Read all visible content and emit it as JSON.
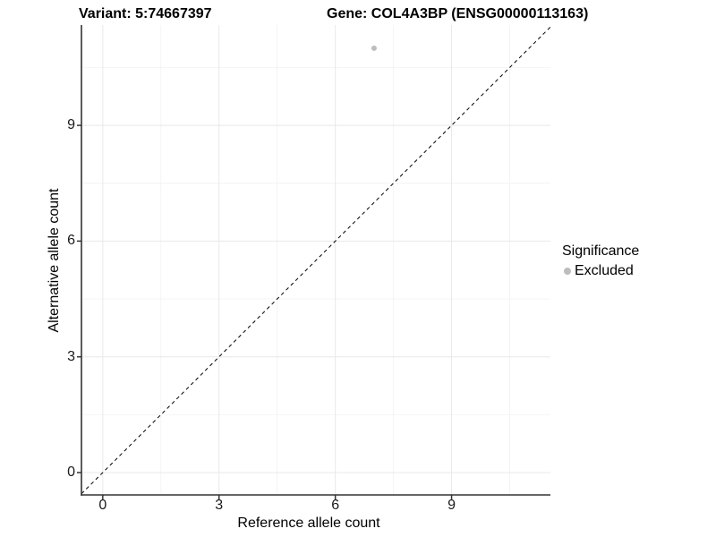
{
  "chart_data": {
    "type": "scatter",
    "title_left": "Variant: 5:74667397",
    "title_right": "Gene: COL4A3BP (ENSG00000113163)",
    "xlabel": "Reference allele count",
    "ylabel": "Alternative allele count",
    "xlim": [
      -0.55,
      11.55
    ],
    "ylim": [
      -0.58,
      11.6
    ],
    "x_ticks": [
      0,
      3,
      6,
      9
    ],
    "y_ticks": [
      0,
      3,
      6,
      9
    ],
    "x_minor_ticks": [
      1.5,
      4.5,
      7.5,
      10.5
    ],
    "y_minor_ticks": [
      1.5,
      4.5,
      7.5,
      10.5
    ],
    "grid": "major+minor",
    "reference_line": {
      "type": "identity",
      "slope": 1,
      "intercept": 0,
      "style": "dashed"
    },
    "series": [
      {
        "name": "Excluded",
        "color": "#bdbdbd",
        "points": [
          {
            "x": 7,
            "y": 11
          }
        ]
      }
    ],
    "legend": {
      "title": "Significance",
      "position": "right",
      "items": [
        {
          "label": "Excluded",
          "color": "#bdbdbd"
        }
      ]
    }
  },
  "colors": {
    "background": "#ffffff",
    "grid_major": "#e8e8e8",
    "grid_minor": "#f4f4f4",
    "axis_line": "#333333",
    "tick_mark": "#333333",
    "dashed_line": "#000000",
    "text": "#000000",
    "point": "#bdbdbd"
  }
}
